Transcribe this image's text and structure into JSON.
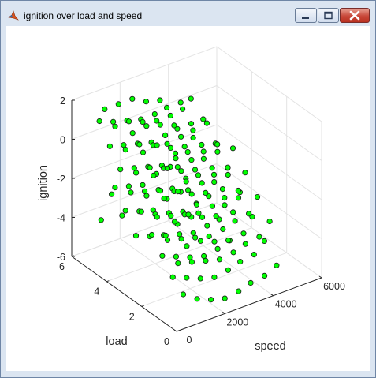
{
  "window": {
    "title": "ignition over load and speed",
    "icon": "matlab-logo-icon",
    "controls": [
      "minimize-icon",
      "maximize-icon",
      "close-icon"
    ]
  },
  "colors": {
    "marker_face": "#00ff00",
    "marker_edge": "#1a1a1a",
    "grid": "#e3e3e3",
    "axis": "#262626",
    "figure_bg": "#ffffff",
    "frame_bg": "#dbe5f1"
  },
  "chart_data": {
    "type": "scatter",
    "dimensions": 3,
    "title": "",
    "xlabel": "speed",
    "ylabel": "load",
    "zlabel": "ignition",
    "xlim": [
      0,
      6000
    ],
    "ylim": [
      0,
      6
    ],
    "zlim": [
      -6,
      2
    ],
    "xticks": [
      "0",
      "2000",
      "4000",
      "6000"
    ],
    "yticks": [
      "0",
      "2",
      "4",
      "6"
    ],
    "zticks": [
      "-6",
      "-4",
      "-2",
      "0",
      "2"
    ],
    "grid": true,
    "legend": "none",
    "speed_levels": [
      1000,
      1500,
      2000,
      2500,
      3000,
      3500,
      4000,
      4500
    ],
    "points_description_note": "",
    "points": [
      [
        1000,
        1.0,
        -5.2
      ],
      [
        1000,
        1.6,
        -4.7
      ],
      [
        1000,
        2.2,
        -4.0
      ],
      [
        1000,
        2.8,
        -3.3
      ],
      [
        1000,
        3.4,
        -2.5
      ],
      [
        1000,
        4.0,
        -1.9
      ],
      [
        1000,
        4.6,
        -1.1
      ],
      [
        1000,
        5.2,
        -0.3
      ],
      [
        1000,
        5.8,
        0.6
      ],
      [
        1000,
        1.3,
        -3.8
      ],
      [
        1000,
        1.9,
        -3.0
      ],
      [
        1000,
        2.5,
        -2.2
      ],
      [
        1000,
        3.1,
        -1.5
      ],
      [
        1000,
        3.7,
        -0.7
      ],
      [
        1000,
        4.3,
        0.1
      ],
      [
        1000,
        4.9,
        0.9
      ],
      [
        1000,
        5.5,
        1.4
      ],
      [
        1000,
        0.8,
        -2.6
      ],
      [
        1000,
        1.5,
        -1.8
      ],
      [
        1000,
        2.1,
        -1.0
      ],
      [
        1000,
        2.7,
        -0.2
      ],
      [
        1000,
        3.3,
        0.6
      ],
      [
        1000,
        3.9,
        1.2
      ],
      [
        1000,
        4.5,
        -3.4
      ],
      [
        1000,
        5.1,
        -2.7
      ],
      [
        1000,
        5.7,
        -4.4
      ],
      [
        1500,
        0.9,
        -5.6
      ],
      [
        1500,
        1.5,
        -4.9
      ],
      [
        1500,
        2.1,
        -4.2
      ],
      [
        1500,
        2.7,
        -3.5
      ],
      [
        1500,
        3.3,
        -2.8
      ],
      [
        1500,
        3.9,
        -2.0
      ],
      [
        1500,
        4.5,
        -1.2
      ],
      [
        1500,
        5.1,
        -0.4
      ],
      [
        1500,
        5.7,
        0.4
      ],
      [
        1500,
        1.2,
        -3.9
      ],
      [
        1500,
        1.8,
        -3.1
      ],
      [
        1500,
        2.4,
        -2.3
      ],
      [
        1500,
        3.0,
        -1.4
      ],
      [
        1500,
        3.6,
        -0.6
      ],
      [
        1500,
        4.2,
        0.2
      ],
      [
        1500,
        4.8,
        1.0
      ],
      [
        1500,
        5.4,
        1.5
      ],
      [
        1500,
        0.7,
        -2.5
      ],
      [
        1500,
        1.4,
        -1.6
      ],
      [
        1500,
        2.0,
        -0.8
      ],
      [
        1500,
        2.6,
        0.0
      ],
      [
        1500,
        3.2,
        0.8
      ],
      [
        1500,
        3.8,
        1.4
      ],
      [
        1500,
        4.4,
        -4.6
      ],
      [
        1500,
        5.0,
        -3.7
      ],
      [
        1500,
        5.6,
        -2.9
      ],
      [
        2000,
        0.8,
        -5.8
      ],
      [
        2000,
        1.4,
        -5.1
      ],
      [
        2000,
        2.0,
        -4.4
      ],
      [
        2000,
        2.6,
        -3.6
      ],
      [
        2000,
        3.2,
        -2.9
      ],
      [
        2000,
        3.8,
        -2.1
      ],
      [
        2000,
        4.4,
        -1.3
      ],
      [
        2000,
        5.0,
        -0.5
      ],
      [
        2000,
        5.6,
        0.3
      ],
      [
        2000,
        1.1,
        -4.0
      ],
      [
        2000,
        1.7,
        -3.2
      ],
      [
        2000,
        2.3,
        -2.4
      ],
      [
        2000,
        2.9,
        -1.6
      ],
      [
        2000,
        3.5,
        -0.8
      ],
      [
        2000,
        4.1,
        0.0
      ],
      [
        2000,
        4.7,
        0.8
      ],
      [
        2000,
        5.3,
        1.6
      ],
      [
        2000,
        0.6,
        -2.7
      ],
      [
        2000,
        1.3,
        -1.9
      ],
      [
        2000,
        1.9,
        -1.1
      ],
      [
        2000,
        2.5,
        -0.3
      ],
      [
        2000,
        3.1,
        0.5
      ],
      [
        2000,
        3.7,
        1.3
      ],
      [
        2000,
        4.3,
        -4.8
      ],
      [
        2000,
        4.9,
        -3.9
      ],
      [
        2000,
        5.5,
        -3.0
      ],
      [
        2500,
        0.7,
        -5.9
      ],
      [
        2500,
        1.3,
        -5.2
      ],
      [
        2500,
        1.9,
        -4.5
      ],
      [
        2500,
        2.5,
        -3.7
      ],
      [
        2500,
        3.1,
        -3.0
      ],
      [
        2500,
        3.7,
        -2.2
      ],
      [
        2500,
        4.3,
        -1.4
      ],
      [
        2500,
        4.9,
        -0.6
      ],
      [
        2500,
        5.5,
        0.2
      ],
      [
        2500,
        1.0,
        -4.1
      ],
      [
        2500,
        1.6,
        -3.3
      ],
      [
        2500,
        2.2,
        -2.5
      ],
      [
        2500,
        2.8,
        -1.7
      ],
      [
        2500,
        3.4,
        -0.9
      ],
      [
        2500,
        4.0,
        -0.1
      ],
      [
        2500,
        4.6,
        0.7
      ],
      [
        2500,
        5.2,
        1.3
      ],
      [
        2500,
        0.5,
        -2.8
      ],
      [
        2500,
        1.2,
        -2.0
      ],
      [
        2500,
        1.8,
        -1.2
      ],
      [
        2500,
        2.4,
        -0.4
      ],
      [
        2500,
        3.0,
        0.4
      ],
      [
        2500,
        3.6,
        1.1
      ],
      [
        2500,
        4.2,
        -4.9
      ],
      [
        2500,
        4.8,
        -4.0
      ],
      [
        2500,
        5.4,
        -3.1
      ],
      [
        3000,
        0.6,
        -5.7
      ],
      [
        3000,
        1.2,
        -5.0
      ],
      [
        3000,
        1.8,
        -4.3
      ],
      [
        3000,
        2.4,
        -3.5
      ],
      [
        3000,
        3.0,
        -2.8
      ],
      [
        3000,
        3.6,
        -2.0
      ],
      [
        3000,
        4.2,
        -1.2
      ],
      [
        3000,
        4.8,
        -0.4
      ],
      [
        3000,
        5.4,
        0.3
      ],
      [
        3000,
        0.9,
        -3.9
      ],
      [
        3000,
        1.5,
        -3.1
      ],
      [
        3000,
        2.1,
        -2.3
      ],
      [
        3000,
        2.7,
        -1.5
      ],
      [
        3000,
        3.3,
        -0.7
      ],
      [
        3000,
        3.9,
        0.1
      ],
      [
        3000,
        4.5,
        0.8
      ],
      [
        3000,
        5.1,
        1.2
      ],
      [
        3000,
        1.4,
        -1.8
      ],
      [
        3000,
        2.0,
        -1.0
      ],
      [
        3000,
        2.6,
        -0.2
      ],
      [
        3000,
        3.2,
        0.5
      ],
      [
        3000,
        4.1,
        -4.5
      ],
      [
        3000,
        4.7,
        -3.6
      ],
      [
        3000,
        5.3,
        -2.7
      ],
      [
        3500,
        0.6,
        -5.5
      ],
      [
        3500,
        1.2,
        -4.8
      ],
      [
        3500,
        1.8,
        -4.1
      ],
      [
        3500,
        2.4,
        -3.4
      ],
      [
        3500,
        3.0,
        -2.6
      ],
      [
        3500,
        3.6,
        -1.9
      ],
      [
        3500,
        4.2,
        -1.1
      ],
      [
        3500,
        4.8,
        -0.3
      ],
      [
        3500,
        5.4,
        0.4
      ],
      [
        3500,
        0.9,
        -3.7
      ],
      [
        3500,
        1.5,
        -2.9
      ],
      [
        3500,
        2.1,
        -2.1
      ],
      [
        3500,
        2.7,
        -1.3
      ],
      [
        3500,
        3.3,
        -0.5
      ],
      [
        3500,
        3.9,
        0.2
      ],
      [
        3500,
        4.5,
        0.9
      ],
      [
        3500,
        1.3,
        -1.6
      ],
      [
        3500,
        1.9,
        -0.8
      ],
      [
        3500,
        2.5,
        0.0
      ],
      [
        3500,
        4.0,
        -4.3
      ],
      [
        3500,
        4.6,
        -3.4
      ],
      [
        3500,
        5.2,
        -2.5
      ],
      [
        4000,
        0.5,
        -5.3
      ],
      [
        4000,
        1.1,
        -4.6
      ],
      [
        4000,
        1.7,
        -3.9
      ],
      [
        4000,
        2.3,
        -3.2
      ],
      [
        4000,
        2.9,
        -2.4
      ],
      [
        4000,
        3.5,
        -1.7
      ],
      [
        4000,
        4.1,
        -0.9
      ],
      [
        4000,
        4.7,
        -0.2
      ],
      [
        4000,
        5.3,
        0.5
      ],
      [
        4000,
        0.8,
        -3.5
      ],
      [
        4000,
        1.4,
        -2.7
      ],
      [
        4000,
        2.0,
        -1.9
      ],
      [
        4000,
        2.6,
        -1.1
      ],
      [
        4000,
        3.2,
        -0.3
      ],
      [
        4000,
        3.8,
        0.4
      ],
      [
        4000,
        4.4,
        -4.1
      ],
      [
        4000,
        5.0,
        -3.2
      ],
      [
        4000,
        5.6,
        -2.3
      ],
      [
        4500,
        0.5,
        -5.0
      ],
      [
        4500,
        1.2,
        -4.2
      ],
      [
        4500,
        1.9,
        -3.4
      ],
      [
        4500,
        2.6,
        -2.6
      ],
      [
        4500,
        3.3,
        -1.8
      ],
      [
        4500,
        4.0,
        -1.0
      ],
      [
        4500,
        4.7,
        -0.2
      ],
      [
        4500,
        5.4,
        0.4
      ],
      [
        4500,
        0.9,
        -3.0
      ],
      [
        4500,
        1.6,
        -2.2
      ],
      [
        4500,
        2.3,
        -1.4
      ],
      [
        4500,
        3.0,
        -0.6
      ]
    ]
  }
}
